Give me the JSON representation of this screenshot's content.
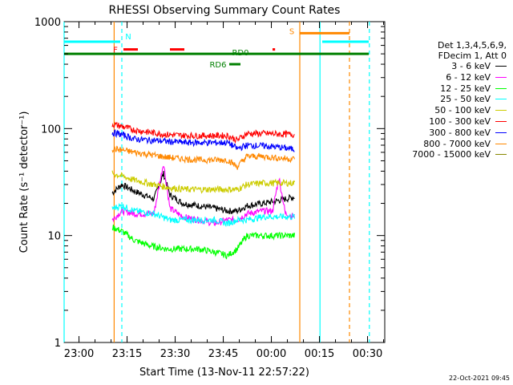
{
  "chart_data": {
    "type": "line",
    "title": "RHESSI Observing Summary Count Rates",
    "xlabel": "Start Time (13-Nov-11 22:57:22)",
    "ylabel": "Count Rate (s⁻¹ detector⁻¹)",
    "yscale": "log",
    "xlim_minutes": [
      -2,
      98
    ],
    "ylim": [
      1,
      1000
    ],
    "x_tick_labels": [
      "23:00",
      "23:15",
      "23:30",
      "23:45",
      "00:00",
      "00:15",
      "00:30"
    ],
    "y_tick_labels": [
      "1",
      "10",
      "100",
      "1000"
    ],
    "legend": {
      "header": [
        "Det 1,3,4,5,6,9,",
        "FDecim 1, Att 0"
      ],
      "entries": [
        {
          "label": "3 - 6 keV",
          "color": "#000000"
        },
        {
          "label": "6 - 12 keV",
          "color": "#ff00ff"
        },
        {
          "label": "12 - 25 keV",
          "color": "#00ff00"
        },
        {
          "label": "25 - 50 keV",
          "color": "#00ffff"
        },
        {
          "label": "50 - 100 keV",
          "color": "#cccc00"
        },
        {
          "label": "100 - 300 keV",
          "color": "#ff0000"
        },
        {
          "label": "300 - 800 keV",
          "color": "#0000ff"
        },
        {
          "label": "800 - 7000 keV",
          "color": "#ff8800"
        },
        {
          "label": "7000 - 15000 keV",
          "color": "#888800"
        }
      ]
    },
    "series": [
      {
        "name": "3 - 6 keV",
        "color": "#000000",
        "points": [
          [
            13,
            25
          ],
          [
            16,
            30
          ],
          [
            20,
            26
          ],
          [
            26,
            22
          ],
          [
            29,
            38
          ],
          [
            31,
            24
          ],
          [
            35,
            20
          ],
          [
            40,
            19
          ],
          [
            45,
            18
          ],
          [
            49,
            17
          ],
          [
            52,
            17
          ],
          [
            55,
            19
          ],
          [
            60,
            20
          ],
          [
            64,
            21
          ],
          [
            67,
            22
          ],
          [
            70,
            23
          ]
        ]
      },
      {
        "name": "6 - 12 keV",
        "color": "#ff00ff",
        "points": [
          [
            13,
            14
          ],
          [
            16,
            17
          ],
          [
            20,
            16
          ],
          [
            26,
            16
          ],
          [
            29,
            48
          ],
          [
            31,
            18
          ],
          [
            35,
            15
          ],
          [
            40,
            14
          ],
          [
            45,
            13
          ],
          [
            49,
            14
          ],
          [
            52,
            14
          ],
          [
            55,
            16
          ],
          [
            60,
            17
          ],
          [
            63,
            17
          ],
          [
            65,
            35
          ],
          [
            67,
            16
          ],
          [
            70,
            15
          ]
        ]
      },
      {
        "name": "12 - 25 keV",
        "color": "#00ff00",
        "points": [
          [
            13,
            12
          ],
          [
            16,
            11
          ],
          [
            20,
            9
          ],
          [
            25,
            8
          ],
          [
            30,
            7.5
          ],
          [
            35,
            7.5
          ],
          [
            40,
            7.5
          ],
          [
            45,
            7
          ],
          [
            49,
            6.5
          ],
          [
            52,
            7.5
          ],
          [
            55,
            10
          ],
          [
            60,
            10
          ],
          [
            65,
            10
          ],
          [
            70,
            10
          ]
        ]
      },
      {
        "name": "25 - 50 keV",
        "color": "#00ffff",
        "points": [
          [
            13,
            18
          ],
          [
            16,
            19
          ],
          [
            20,
            17
          ],
          [
            26,
            16
          ],
          [
            31,
            14
          ],
          [
            35,
            14
          ],
          [
            40,
            14
          ],
          [
            45,
            14
          ],
          [
            49,
            13
          ],
          [
            52,
            14
          ],
          [
            55,
            14
          ],
          [
            60,
            15
          ],
          [
            65,
            15
          ],
          [
            70,
            15
          ]
        ]
      },
      {
        "name": "50 - 100 keV",
        "color": "#cccc00",
        "points": [
          [
            13,
            38
          ],
          [
            16,
            36
          ],
          [
            20,
            33
          ],
          [
            26,
            30
          ],
          [
            31,
            28
          ],
          [
            36,
            27
          ],
          [
            40,
            27
          ],
          [
            45,
            27
          ],
          [
            49,
            27
          ],
          [
            52,
            27
          ],
          [
            55,
            30
          ],
          [
            60,
            31
          ],
          [
            65,
            31
          ],
          [
            70,
            31
          ]
        ]
      },
      {
        "name": "100 - 300 keV",
        "color": "#ff0000",
        "points": [
          [
            13,
            110
          ],
          [
            16,
            105
          ],
          [
            20,
            97
          ],
          [
            25,
            92
          ],
          [
            30,
            88
          ],
          [
            36,
            86
          ],
          [
            40,
            86
          ],
          [
            45,
            86
          ],
          [
            49,
            86
          ],
          [
            52,
            78
          ],
          [
            55,
            90
          ],
          [
            60,
            90
          ],
          [
            65,
            89
          ],
          [
            70,
            88
          ]
        ]
      },
      {
        "name": "300 - 800 keV",
        "color": "#0000ff",
        "points": [
          [
            13,
            92
          ],
          [
            16,
            88
          ],
          [
            20,
            80
          ],
          [
            25,
            78
          ],
          [
            30,
            76
          ],
          [
            36,
            74
          ],
          [
            40,
            74
          ],
          [
            45,
            74
          ],
          [
            49,
            74
          ],
          [
            52,
            65
          ],
          [
            55,
            70
          ],
          [
            60,
            69
          ],
          [
            65,
            67
          ],
          [
            70,
            64
          ]
        ]
      },
      {
        "name": "800 - 7000 keV",
        "color": "#ff8800",
        "points": [
          [
            13,
            65
          ],
          [
            16,
            63
          ],
          [
            20,
            60
          ],
          [
            25,
            57
          ],
          [
            30,
            54
          ],
          [
            36,
            52
          ],
          [
            40,
            51
          ],
          [
            45,
            51
          ],
          [
            49,
            51
          ],
          [
            52,
            44
          ],
          [
            55,
            55
          ],
          [
            60,
            55
          ],
          [
            65,
            53
          ],
          [
            70,
            52
          ]
        ]
      },
      {
        "name": "7000 - 15000 keV",
        "color": "#888800",
        "points": []
      }
    ],
    "flags": [
      {
        "label": "N",
        "color": "#00ffff",
        "y": 650,
        "segments": [
          [
            -2,
            15.5
          ],
          [
            78.5,
            93
          ]
        ]
      },
      {
        "label": "F",
        "color": "#ff0000",
        "y": 550,
        "segments": [
          [
            16.5,
            21
          ],
          [
            31,
            35.5
          ],
          [
            63,
            63.8
          ]
        ]
      },
      {
        "label": "S",
        "color": "#ff8800",
        "y": 780,
        "segments": [
          [
            71.5,
            87
          ]
        ]
      },
      {
        "label": "RD0",
        "color": "#008000",
        "y": 500,
        "segments": [
          [
            -2,
            93
          ]
        ]
      },
      {
        "label": "RD6",
        "color": "#008000",
        "y": 400,
        "segments": [
          [
            49.5,
            53
          ]
        ]
      }
    ],
    "vlines": [
      {
        "x": 13.6,
        "color": "#ff8800",
        "style": "solid"
      },
      {
        "x": 16,
        "color": "#00ffff",
        "style": "dashed"
      },
      {
        "x": 71.5,
        "color": "#ff8800",
        "style": "solid"
      },
      {
        "x": 77.8,
        "color": "#00ffff",
        "style": "solid"
      },
      {
        "x": 87,
        "color": "#ff8800",
        "style": "dashed"
      },
      {
        "x": 93.2,
        "color": "#00ffff",
        "style": "dashed"
      },
      {
        "x": -2,
        "color": "#00ffff",
        "style": "solid"
      }
    ]
  },
  "footer": {
    "timestamp": "22-Oct-2021 09:45"
  }
}
